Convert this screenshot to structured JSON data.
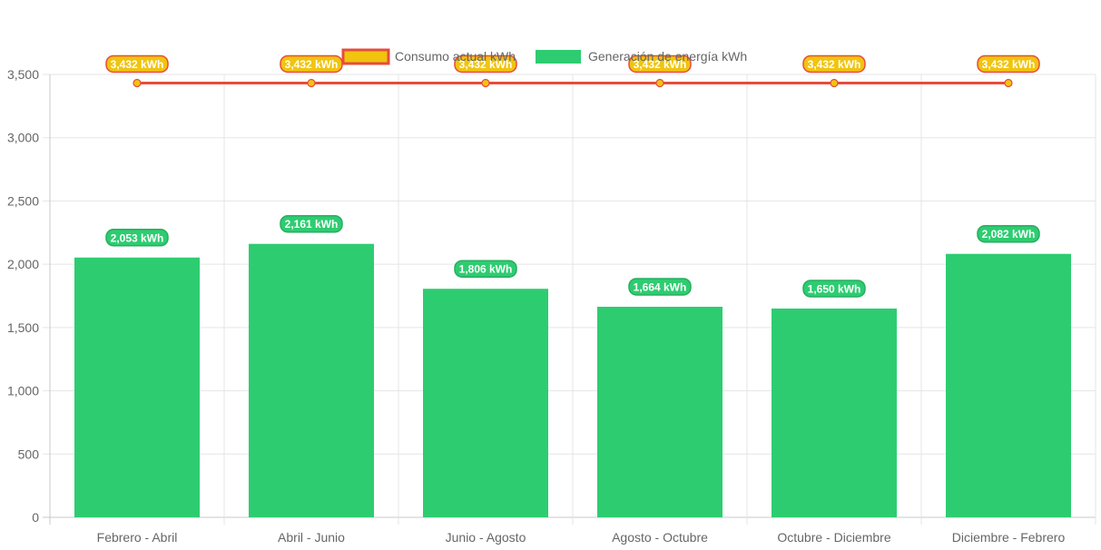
{
  "colors": {
    "bar_fill": "#2ecc71",
    "line_stroke": "#e74c3c",
    "point_fill": "#f1c40f",
    "consumption_label_bg": "#f1c40f",
    "consumption_label_border": "#e74c3c",
    "generation_label_bg": "#2ecc71",
    "grid": "#e5e5e5",
    "axis_text": "#666666"
  },
  "chart_data": {
    "type": "bar",
    "categories": [
      "Febrero - Abril",
      "Abril - Junio",
      "Junio - Agosto",
      "Agosto - Octubre",
      "Octubre - Diciembre",
      "Diciembre - Febrero"
    ],
    "series": [
      {
        "name": "Consumo actual kWh",
        "type": "line",
        "values": [
          3432,
          3432,
          3432,
          3432,
          3432,
          3432
        ],
        "data_labels": [
          "3,432 kWh",
          "3,432 kWh",
          "3,432 kWh",
          "3,432 kWh",
          "3,432 kWh",
          "3,432 kWh"
        ]
      },
      {
        "name": "Generación de energía kWh",
        "type": "bar",
        "values": [
          2053,
          2161,
          1806,
          1664,
          1650,
          2082
        ],
        "data_labels": [
          "2,053 kWh",
          "2,161 kWh",
          "1,806 kWh",
          "1,664 kWh",
          "1,650 kWh",
          "2,082 kWh"
        ]
      }
    ],
    "ylim": [
      0,
      3500
    ],
    "y_ticks": [
      0,
      500,
      1000,
      1500,
      2000,
      2500,
      3000,
      3500
    ],
    "y_tick_labels": [
      "0",
      "500",
      "1,000",
      "1,500",
      "2,000",
      "2,500",
      "3,000",
      "3,500"
    ],
    "grid": true,
    "legend_position": "top-center",
    "title": "",
    "xlabel": "",
    "ylabel": ""
  }
}
